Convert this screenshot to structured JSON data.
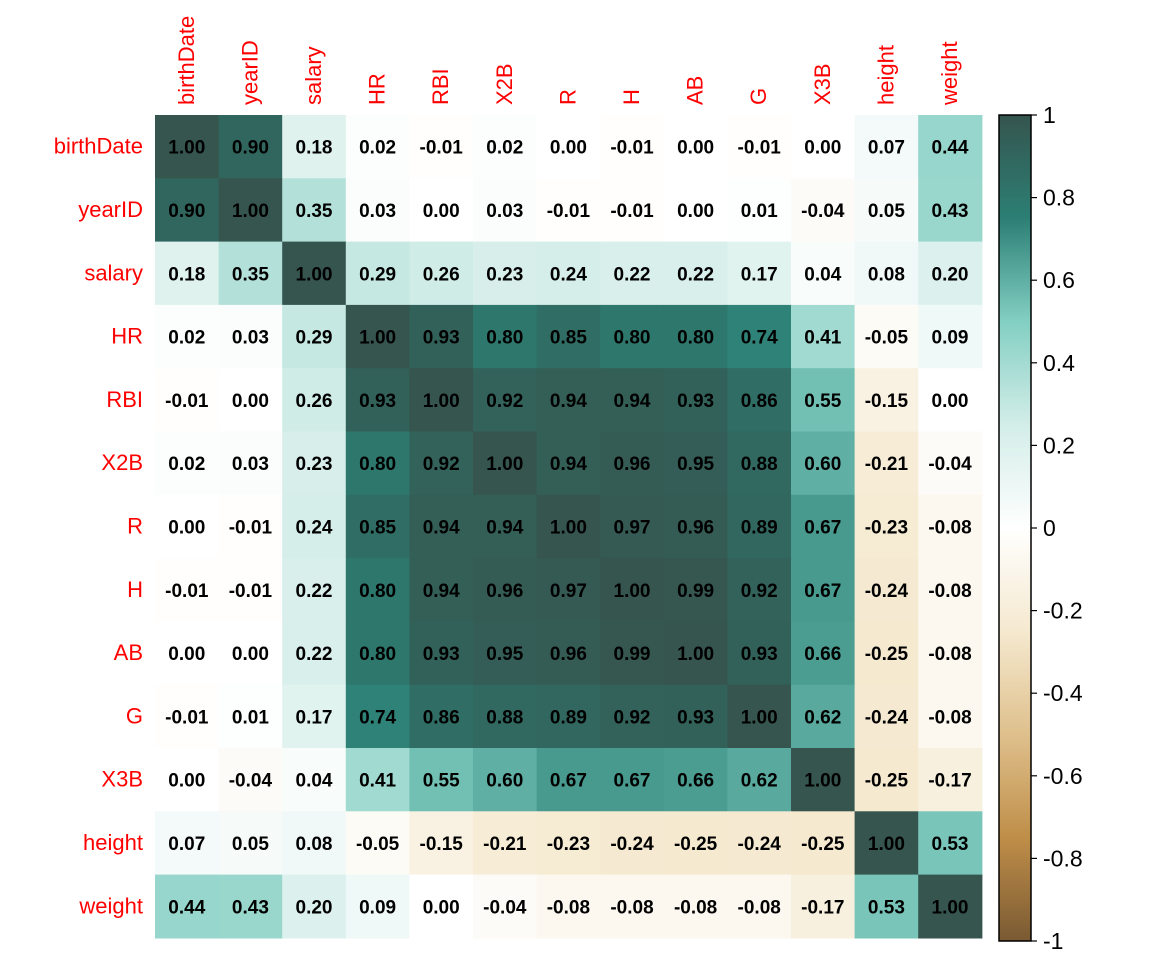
{
  "chart_data": {
    "type": "heatmap",
    "title": "",
    "xlabel": "",
    "ylabel": "",
    "variables": [
      "birthDate",
      "yearID",
      "salary",
      "HR",
      "RBI",
      "X2B",
      "R",
      "H",
      "AB",
      "G",
      "X3B",
      "height",
      "weight"
    ],
    "matrix": [
      [
        1.0,
        0.9,
        0.18,
        0.02,
        -0.01,
        0.02,
        0.0,
        -0.01,
        0.0,
        -0.01,
        0.0,
        0.07,
        0.44
      ],
      [
        0.9,
        1.0,
        0.35,
        0.03,
        0.0,
        0.03,
        -0.01,
        -0.01,
        0.0,
        0.01,
        -0.04,
        0.05,
        0.43
      ],
      [
        0.18,
        0.35,
        1.0,
        0.29,
        0.26,
        0.23,
        0.24,
        0.22,
        0.22,
        0.17,
        0.04,
        0.08,
        0.2
      ],
      [
        0.02,
        0.03,
        0.29,
        1.0,
        0.93,
        0.8,
        0.85,
        0.8,
        0.8,
        0.74,
        0.41,
        -0.05,
        0.09
      ],
      [
        -0.01,
        0.0,
        0.26,
        0.93,
        1.0,
        0.92,
        0.94,
        0.94,
        0.93,
        0.86,
        0.55,
        -0.15,
        0.0
      ],
      [
        0.02,
        0.03,
        0.23,
        0.8,
        0.92,
        1.0,
        0.94,
        0.96,
        0.95,
        0.88,
        0.6,
        -0.21,
        -0.04
      ],
      [
        0.0,
        -0.01,
        0.24,
        0.85,
        0.94,
        0.94,
        1.0,
        0.97,
        0.96,
        0.89,
        0.67,
        -0.23,
        -0.08
      ],
      [
        -0.01,
        -0.01,
        0.22,
        0.8,
        0.94,
        0.96,
        0.97,
        1.0,
        0.99,
        0.92,
        0.67,
        -0.24,
        -0.08
      ],
      [
        0.0,
        0.0,
        0.22,
        0.8,
        0.93,
        0.95,
        0.96,
        0.99,
        1.0,
        0.93,
        0.66,
        -0.25,
        -0.08
      ],
      [
        -0.01,
        0.01,
        0.17,
        0.74,
        0.86,
        0.88,
        0.89,
        0.92,
        0.93,
        1.0,
        0.62,
        -0.24,
        -0.08
      ],
      [
        0.0,
        -0.04,
        0.04,
        0.41,
        0.55,
        0.6,
        0.67,
        0.67,
        0.66,
        0.62,
        1.0,
        -0.25,
        -0.17
      ],
      [
        0.07,
        0.05,
        0.08,
        -0.05,
        -0.15,
        -0.21,
        -0.23,
        -0.24,
        -0.25,
        -0.24,
        -0.25,
        1.0,
        0.53
      ],
      [
        0.44,
        0.43,
        0.2,
        0.09,
        0.0,
        -0.04,
        -0.08,
        -0.08,
        -0.08,
        -0.08,
        -0.17,
        0.53,
        1.0
      ]
    ],
    "value_decimals": 2,
    "color_range": [
      -1,
      1
    ],
    "colorbar": {
      "ticks": [
        1,
        0.8,
        0.6,
        0.4,
        0.2,
        0,
        -0.2,
        -0.4,
        -0.6,
        -0.8,
        -1
      ],
      "tick_labels": [
        "1",
        "0.8",
        "0.6",
        "0.4",
        "0.2",
        "0",
        "-0.2",
        "-0.4",
        "-0.6",
        "-0.8",
        "-1"
      ]
    },
    "colors": {
      "label": "#ff0000",
      "negative_end": "#7a5a33",
      "neg_stops": [
        "#f5e9cf",
        "#dfc08d",
        "#bf8e48",
        "#7a5a33"
      ],
      "zero": "#ffffff",
      "pos_stops": [
        "#d3ede8",
        "#83cfc3",
        "#2c7f75",
        "#35554e"
      ],
      "positive_end": "#35554e"
    },
    "grid": false,
    "legend_position": "right"
  }
}
